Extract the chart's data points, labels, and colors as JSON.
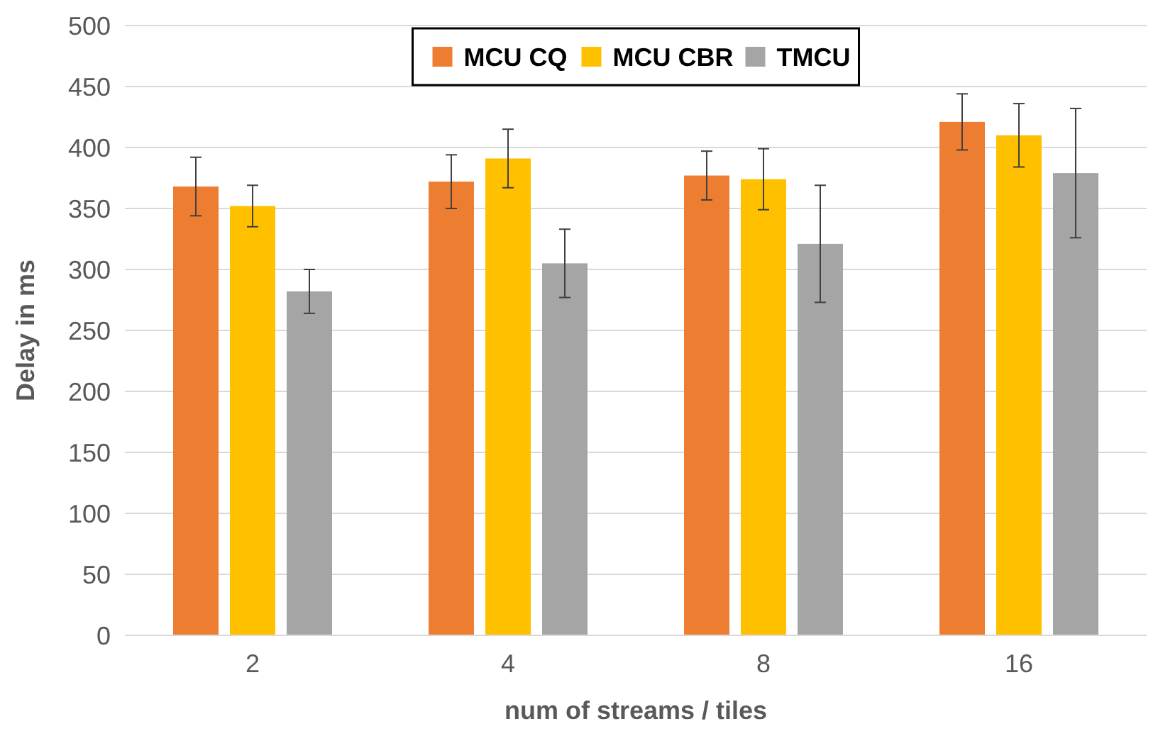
{
  "chart_data": {
    "type": "bar",
    "xlabel": "num of streams / tiles",
    "ylabel": "Delay in ms",
    "categories": [
      "2",
      "4",
      "8",
      "16"
    ],
    "series": [
      {
        "name": "MCU CQ",
        "color": "#ed7d31",
        "values": [
          368,
          372,
          377,
          421
        ],
        "errors": [
          24,
          22,
          20,
          23
        ]
      },
      {
        "name": "MCU CBR",
        "color": "#ffc000",
        "values": [
          352,
          391,
          374,
          410
        ],
        "errors": [
          17,
          24,
          25,
          26
        ]
      },
      {
        "name": "TMCU",
        "color": "#a5a5a5",
        "values": [
          282,
          305,
          321,
          379
        ],
        "errors": [
          18,
          28,
          48,
          53
        ]
      }
    ],
    "ylim": [
      0,
      500
    ],
    "yticks": [
      0,
      50,
      100,
      150,
      200,
      250,
      300,
      350,
      400,
      450,
      500
    ],
    "grid": "y",
    "legend": "top"
  }
}
